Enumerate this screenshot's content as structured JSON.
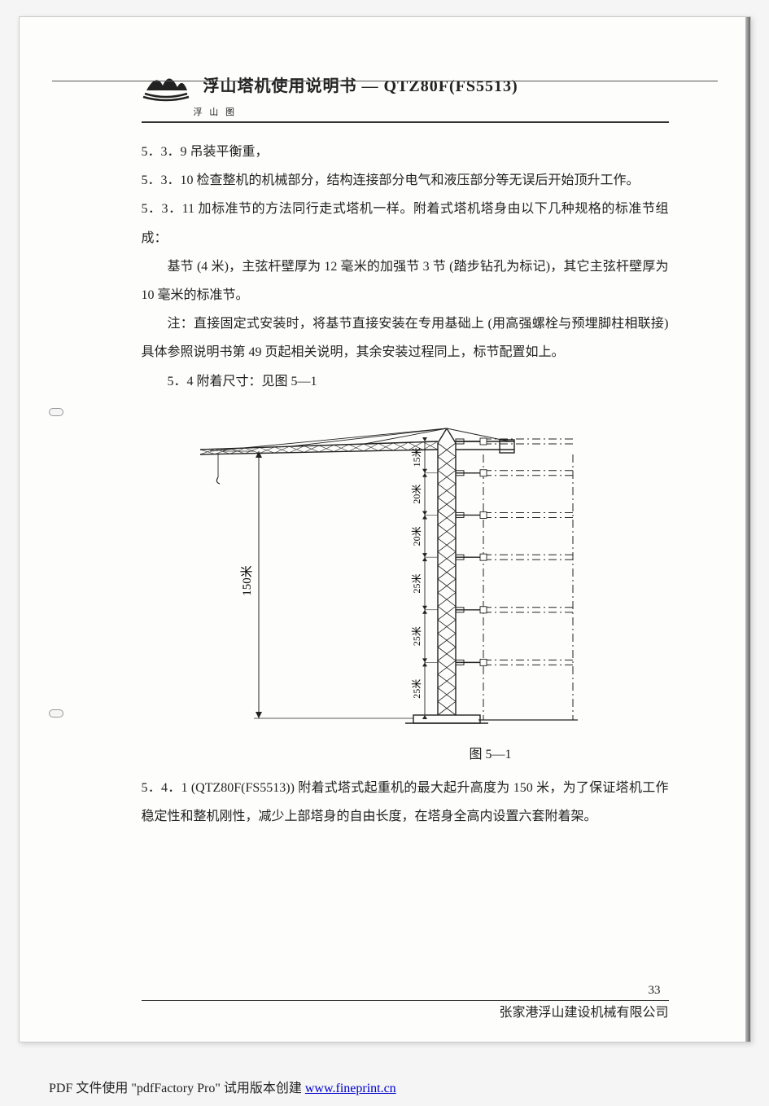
{
  "header": {
    "title": "浮山塔机使用说明书 — QTZ80F(FS5513)",
    "sub": "浮  山  图"
  },
  "paragraphs": {
    "p1": "5．3．9 吊装平衡重，",
    "p2": "5．3．10 检查整机的机械部分，结构连接部分电气和液压部分等无误后开始顶升工作。",
    "p3": "5．3．11 加标准节的方法同行走式塔机一样。附着式塔机塔身由以下几种规格的标准节组成：",
    "p4": "基节 (4 米)，主弦杆壁厚为 12 毫米的加强节 3 节 (踏步钻孔为标记)，其它主弦杆壁厚为 10 毫米的标准节。",
    "p5": "注：直接固定式安装时，将基节直接安装在专用基础上 (用高强螺栓与预埋脚柱相联接) 具体参照说明书第 49 页起相关说明，其余安装过程同上，标节配置如上。",
    "p6": "5．4 附着尺寸：见图 5—1",
    "p7": "5．4．1 (QTZ80F(FS5513)) 附着式塔式起重机的最大起升高度为 150 米，为了保证塔机工作稳定性和整机刚性，减少上部塔身的自由长度，在塔身全高内设置六套附着架。"
  },
  "figure": {
    "caption": "图  5—1",
    "height_label": "150米",
    "seg_labels": [
      "25米",
      "25米",
      "25米",
      "20米",
      "20米",
      "15米"
    ],
    "colors": {
      "stroke": "#222222",
      "bg": "#fdfdfc"
    },
    "line_w": 1.4,
    "jib_len": 300,
    "tower_h": 340,
    "tower_w": 22
  },
  "footer": {
    "page_num": "33",
    "company": "张家港浮山建设机械有限公司",
    "pdf_prefix": "PDF 文件使用 \"pdfFactory Pro\" 试用版本创建 ",
    "pdf_url_text": "www.fineprint.cn"
  }
}
